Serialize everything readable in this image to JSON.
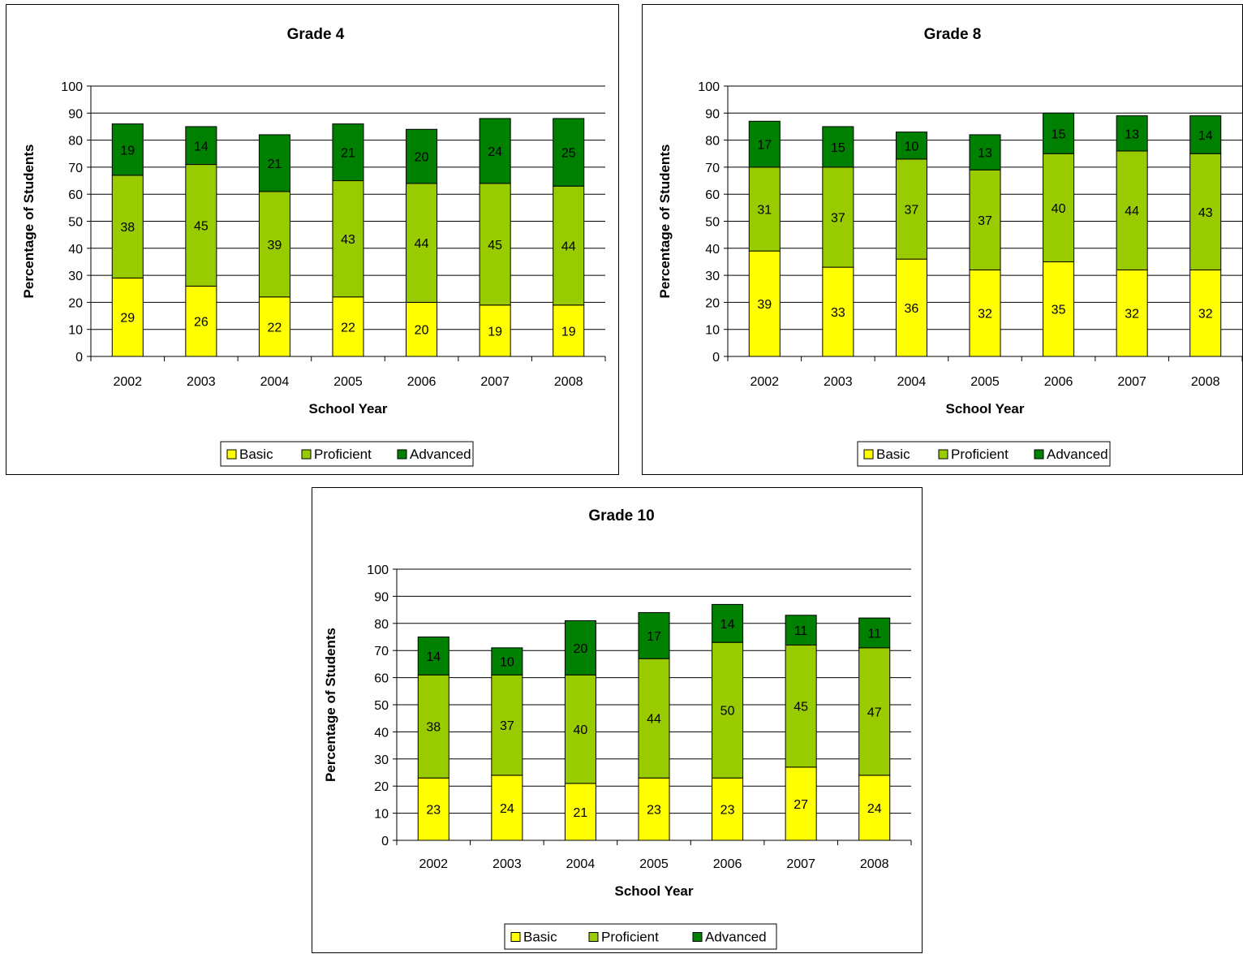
{
  "colors": {
    "basic": "#FFFF00",
    "proficient": "#99CC00",
    "advanced": "#008000"
  },
  "chart_data": [
    {
      "type": "bar",
      "stacked": true,
      "title": "Grade 4",
      "xlabel": "School Year",
      "ylabel": "Percentage of Students",
      "ylim": [
        0,
        100
      ],
      "yticks": [
        0,
        10,
        20,
        30,
        40,
        50,
        60,
        70,
        80,
        90,
        100
      ],
      "grid": true,
      "legend_position": "bottom",
      "categories": [
        "2002",
        "2003",
        "2004",
        "2005",
        "2006",
        "2007",
        "2008"
      ],
      "series": [
        {
          "name": "Basic",
          "color": "#FFFF00",
          "values": [
            29,
            26,
            22,
            22,
            20,
            19,
            19
          ]
        },
        {
          "name": "Proficient",
          "color": "#99CC00",
          "values": [
            38,
            45,
            39,
            43,
            44,
            45,
            44
          ]
        },
        {
          "name": "Advanced",
          "color": "#008000",
          "values": [
            19,
            14,
            21,
            21,
            20,
            24,
            25
          ]
        }
      ]
    },
    {
      "type": "bar",
      "stacked": true,
      "title": "Grade 8",
      "xlabel": "School Year",
      "ylabel": "Percentage of Students",
      "ylim": [
        0,
        100
      ],
      "yticks": [
        0,
        10,
        20,
        30,
        40,
        50,
        60,
        70,
        80,
        90,
        100
      ],
      "grid": true,
      "legend_position": "bottom",
      "categories": [
        "2002",
        "2003",
        "2004",
        "2005",
        "2006",
        "2007",
        "2008"
      ],
      "series": [
        {
          "name": "Basic",
          "color": "#FFFF00",
          "values": [
            39,
            33,
            36,
            32,
            35,
            32,
            32
          ]
        },
        {
          "name": "Proficient",
          "color": "#99CC00",
          "values": [
            31,
            37,
            37,
            37,
            40,
            44,
            43
          ]
        },
        {
          "name": "Advanced",
          "color": "#008000",
          "values": [
            17,
            15,
            10,
            13,
            15,
            13,
            14
          ]
        }
      ]
    },
    {
      "type": "bar",
      "stacked": true,
      "title": "Grade 10",
      "xlabel": "School Year",
      "ylabel": "Percentage of Students",
      "ylim": [
        0,
        100
      ],
      "yticks": [
        0,
        10,
        20,
        30,
        40,
        50,
        60,
        70,
        80,
        90,
        100
      ],
      "grid": true,
      "legend_position": "bottom",
      "categories": [
        "2002",
        "2003",
        "2004",
        "2005",
        "2006",
        "2007",
        "2008"
      ],
      "series": [
        {
          "name": "Basic",
          "color": "#FFFF00",
          "values": [
            23,
            24,
            21,
            23,
            23,
            27,
            24
          ]
        },
        {
          "name": "Proficient",
          "color": "#99CC00",
          "values": [
            38,
            37,
            40,
            44,
            50,
            45,
            47
          ]
        },
        {
          "name": "Advanced",
          "color": "#008000",
          "values": [
            14,
            10,
            20,
            17,
            14,
            11,
            11
          ]
        }
      ]
    }
  ]
}
